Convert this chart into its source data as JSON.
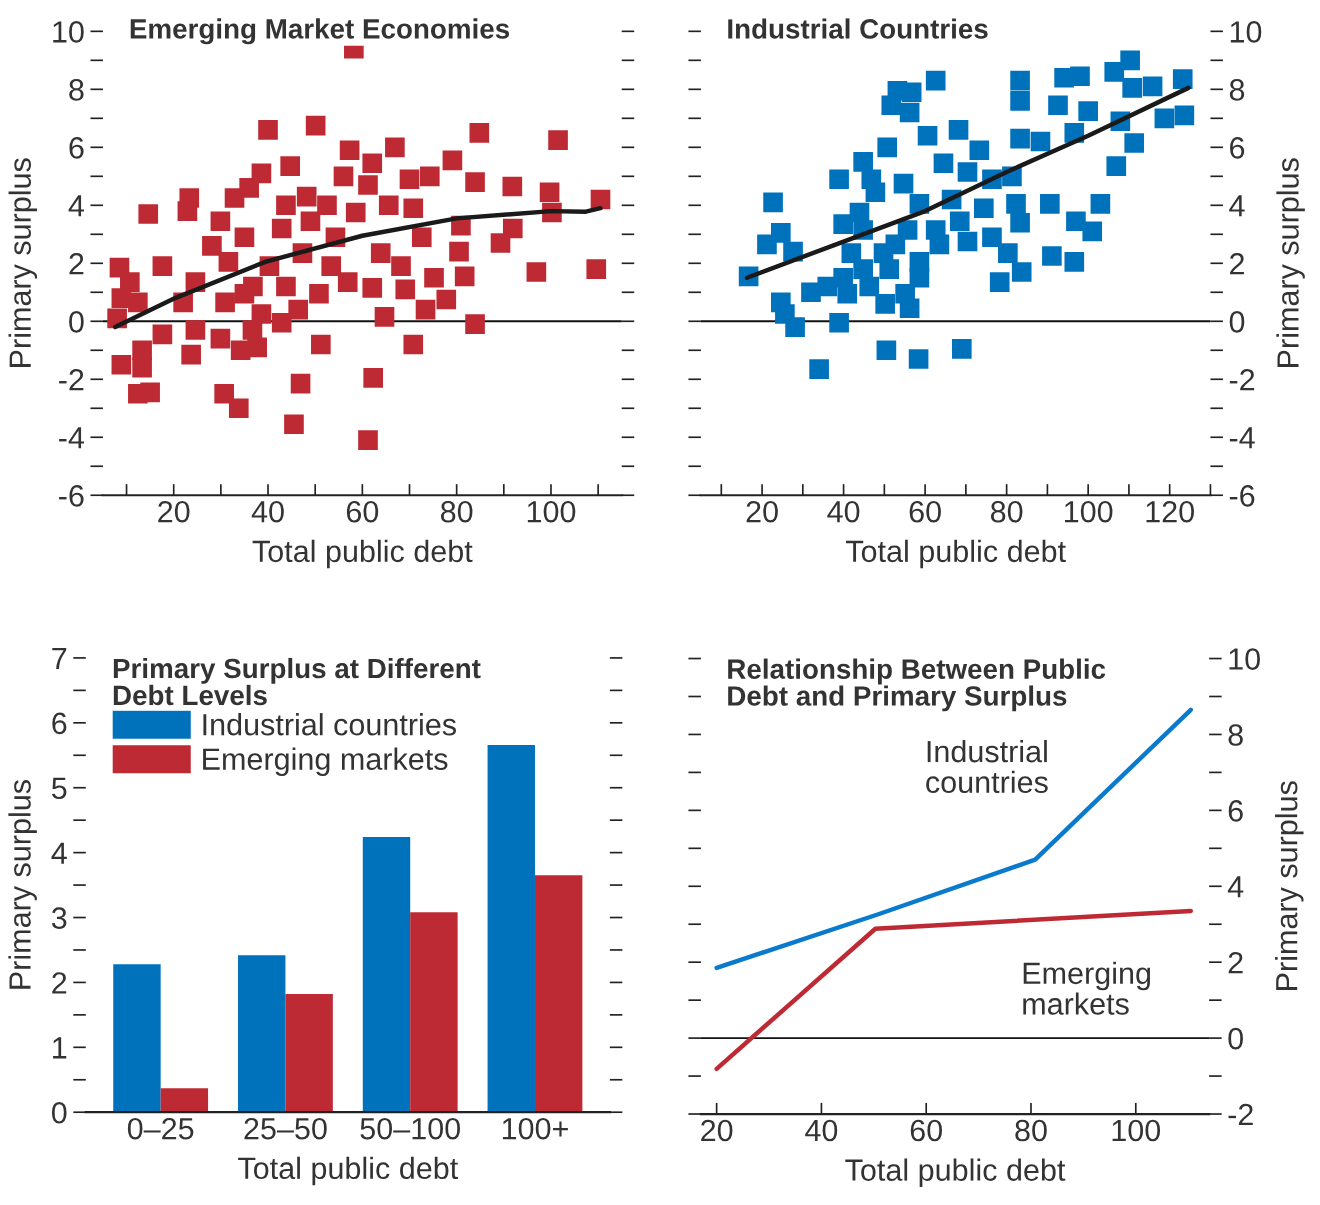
{
  "chart_data": [
    {
      "type": "scatter",
      "title": "Emerging Market Economies",
      "xlabel": "Total public debt",
      "ylabel": "Primary surplus",
      "xlim": [
        5,
        115
      ],
      "xticks": [
        {
          "value": 10,
          "label": null
        },
        20,
        {
          "value": 30,
          "label": null
        },
        40,
        {
          "value": 50,
          "label": null
        },
        60,
        {
          "value": 70,
          "label": null
        },
        80,
        {
          "value": 90,
          "label": null
        },
        100,
        {
          "value": 110,
          "label": null
        }
      ],
      "ylim": [
        -6,
        10
      ],
      "yticks": [
        -6,
        {
          "value": -5,
          "label": null
        },
        -4,
        {
          "value": -3,
          "label": null
        },
        -2,
        {
          "value": -1,
          "label": null
        },
        0,
        {
          "value": 1,
          "label": null
        },
        2,
        {
          "value": 3,
          "label": null
        },
        4,
        {
          "value": 5,
          "label": null
        },
        6,
        {
          "value": 7,
          "label": null
        },
        8,
        {
          "value": 9,
          "label": null
        },
        10
      ],
      "grid": false,
      "ref_lines": [
        {
          "axis": "y",
          "value": 0
        }
      ],
      "series": [
        {
          "type": "scatter",
          "marker": "square",
          "color": "#be2a33",
          "x": [
            58.2,
            40,
            50.1,
            84.8,
            101.5,
            57.3,
            66.9,
            62.1,
            79.1,
            44.7,
            38.6,
            23.3,
            22.9,
            14.6,
            32.9,
            36,
            48.2,
            56,
            61.2,
            70,
            74.3,
            83.9,
            91.8,
            99.7,
            110.5,
            100.2,
            91.9,
            89.3,
            96.9,
            109.6,
            80.9,
            80.5,
            81.7,
            75.2,
            77.8,
            73.4,
            69.1,
            68.2,
            63.9,
            62.1,
            64.7,
            83.9,
            70.8,
            72.6,
            70.8,
            65.6,
            58.6,
            54.3,
            56.9,
            53.4,
            50.8,
            46.4,
            42.9,
            38.6,
            36.7,
            37.7,
            34.2,
            29.9,
            23.7,
            24.6,
            17.6,
            13.3,
            13.3,
            8.9,
            12.4,
            15,
            30.7,
            33.8,
            46.9,
            45.5,
            62.3,
            61.2,
            51.2,
            8.5,
            10.7,
            8.9,
            8,
            12.4,
            17.6,
            24.6,
            22,
            30.9,
            28.1,
            29.9,
            31.6,
            35,
            36.8,
            40.3,
            42.9,
            43.8,
            47.3,
            43.8,
            49,
            52.5,
            35
          ],
          "values": [
            9.4,
            6.6,
            6.75,
            6.5,
            6.25,
            5.9,
            6.0,
            5.45,
            5.55,
            5.35,
            5.1,
            4.25,
            3.8,
            3.7,
            4.25,
            4.6,
            4.3,
            5.0,
            4.7,
            4.9,
            5.0,
            4.8,
            4.65,
            4.45,
            4.2,
            3.75,
            3.2,
            2.7,
            1.7,
            1.8,
            3.3,
            2.4,
            1.55,
            1.5,
            0.75,
            0.4,
            1.1,
            1.9,
            2.35,
            1.15,
            0.15,
            -0.1,
            -0.8,
            2.9,
            3.9,
            4.0,
            3.75,
            2.9,
            1.35,
            1.9,
            0.95,
            0.4,
            -0.05,
            0.25,
            -0.3,
            -0.9,
            -1.0,
            -0.6,
            -1.15,
            -0.3,
            -0.45,
            -1.0,
            -1.6,
            -1.5,
            -2.5,
            -2.45,
            -2.5,
            -3.0,
            -2.15,
            -3.55,
            -1.95,
            -4.1,
            -0.8,
            1.85,
            1.35,
            0.8,
            0.1,
            0.65,
            1.9,
            1.35,
            0.65,
            0.65,
            2.6,
            3.45,
            2.05,
            2.9,
            1.2,
            1.9,
            3.2,
            4.0,
            2.35,
            1.2,
            3.45,
            4.0,
            0.95
          ]
        },
        {
          "type": "line",
          "marker": "none",
          "line_style": "solid",
          "color": "#1a1a1a",
          "x": [
            7.6,
            20.3,
            39.4,
            60,
            80,
            100,
            107.4,
            110.5
          ],
          "values": [
            -0.2,
            0.8,
            2.05,
            2.95,
            3.55,
            3.8,
            3.78,
            3.9
          ]
        }
      ]
    },
    {
      "type": "scatter",
      "title": "Industrial Countries",
      "xlabel": "Total public debt",
      "y2label": "Primary surplus",
      "xlim": [
        5,
        130
      ],
      "xticks": [
        {
          "value": 10,
          "label": null
        },
        20,
        {
          "value": 30,
          "label": null
        },
        40,
        {
          "value": 50,
          "label": null
        },
        60,
        {
          "value": 70,
          "label": null
        },
        80,
        {
          "value": 90,
          "label": null
        },
        100,
        {
          "value": 110,
          "label": null
        },
        120,
        {
          "value": 130,
          "label": null
        }
      ],
      "y2lim": [
        -6,
        10
      ],
      "y2ticks": [
        -6,
        {
          "value": -5,
          "label": null
        },
        -4,
        {
          "value": -3,
          "label": null
        },
        -2,
        {
          "value": -1,
          "label": null
        },
        0,
        {
          "value": 1,
          "label": null
        },
        2,
        {
          "value": 3,
          "label": null
        },
        4,
        {
          "value": 5,
          "label": null
        },
        6,
        {
          "value": 7,
          "label": null
        },
        8,
        {
          "value": 9,
          "label": null
        },
        10
      ],
      "grid": false,
      "ref_lines": [
        {
          "axis": "y2",
          "value": 0
        }
      ],
      "series": [
        {
          "type": "scatter",
          "marker": "square",
          "axis": "y2",
          "color": "#0072bc",
          "x": [
            110.3,
            106.4,
            98,
            94.1,
            123.2,
            115.8,
            110.8,
            83.3,
            83.3,
            92.6,
            100,
            118.7,
            123.6,
            107.9,
            96.6,
            111.3,
            106.9,
            103,
            101,
            97,
            90.6,
            96.6,
            91.1,
            83.7,
            82.3,
            83.3,
            78.3,
            80.3,
            62.6,
            53.2,
            56.7,
            51.7,
            56.2,
            68.2,
            60.6,
            83.3,
            88.3,
            73.3,
            50.7,
            44.8,
            38.9,
            46.8,
            54.7,
            64.5,
            70.4,
            76.4,
            81.3,
            47.8,
            43.9,
            39.9,
            58.6,
            66.5,
            74.4,
            76.4,
            70.4,
            63.5,
            58.6,
            58.6,
            52.7,
            49.8,
            44.8,
            41.9,
            55.7,
            51.2,
            44.8,
            39.9,
            40.9,
            36,
            32,
            46.3,
            50.2,
            55.1,
            56.2,
            22.7,
            24.6,
            21.2,
            27.6,
            16.7,
            24.6,
            25.6,
            28.1,
            38.9,
            50.5,
            58.4,
            69,
            34,
            62.6,
            68.5
          ],
          "values": [
            9.0,
            8.6,
            8.45,
            8.4,
            8.35,
            8.1,
            8.05,
            8.3,
            7.6,
            7.45,
            7.25,
            7.0,
            7.1,
            6.9,
            6.5,
            6.15,
            5.35,
            4.05,
            3.1,
            3.45,
            4.05,
            2.05,
            2.25,
            1.7,
            4.05,
            3.4,
            1.35,
            2.35,
            8.3,
            7.95,
            7.9,
            7.45,
            7.2,
            6.6,
            6.4,
            6.3,
            6.2,
            5.9,
            6.0,
            5.5,
            4.9,
            4.9,
            4.75,
            5.45,
            5.15,
            4.9,
            5.0,
            4.45,
            3.75,
            3.35,
            4.05,
            4.2,
            3.9,
            2.9,
            2.75,
            2.65,
            2.05,
            1.5,
            2.65,
            2.35,
            3.15,
            2.35,
            3.15,
            1.8,
            1.8,
            1.5,
            0.95,
            1.2,
            1.0,
            1.2,
            0.6,
            0.95,
            0.45,
            4.1,
            3.05,
            2.65,
            2.4,
            1.55,
            0.65,
            0.25,
            -0.2,
            -0.05,
            -1.0,
            -1.3,
            -0.95,
            -1.65,
            3.15,
            3.45
          ]
        },
        {
          "type": "line",
          "marker": "none",
          "line_style": "solid",
          "axis": "y2",
          "color": "#1a1a1a",
          "x": [
            16.3,
            40,
            60,
            80,
            100,
            124.6
          ],
          "values": [
            1.5,
            2.75,
            3.8,
            5.15,
            6.4,
            8.05
          ]
        }
      ]
    },
    {
      "type": "bar",
      "title": "Primary Surplus at Different\nDebt Levels",
      "xlabel": "Total public debt",
      "ylabel": "Primary surplus",
      "categories": [
        "0–25",
        "25–50",
        "50–100",
        "100+"
      ],
      "ylim": [
        0,
        7
      ],
      "yticks": [
        0,
        {
          "value": 0.5,
          "label": null
        },
        1,
        {
          "value": 1.5,
          "label": null
        },
        2,
        {
          "value": 2.5,
          "label": null
        },
        3,
        {
          "value": 3.5,
          "label": null
        },
        4,
        {
          "value": 4.5,
          "label": null
        },
        5,
        {
          "value": 5.5,
          "label": null
        },
        6,
        {
          "value": 6.5,
          "label": null
        },
        7
      ],
      "grid": false,
      "legend": "top left",
      "series": [
        {
          "name": "Industrial countries",
          "color": "#0072bc",
          "values": [
            2.28,
            2.42,
            4.24,
            5.66
          ]
        },
        {
          "name": "Emerging markets",
          "color": "#be2a33",
          "values": [
            0.37,
            1.82,
            3.08,
            3.65
          ]
        }
      ]
    },
    {
      "type": "line",
      "title": "Relationship Between Public\nDebt and Primary Surplus",
      "xlabel": "Total public debt",
      "y2label": "Primary surplus",
      "xlim": [
        17,
        114
      ],
      "xticks": [
        20,
        40,
        60,
        80,
        100
      ],
      "y2lim": [
        -2,
        10
      ],
      "y2ticks": [
        -2,
        {
          "value": -1,
          "label": null
        },
        0,
        {
          "value": 1,
          "label": null
        },
        2,
        {
          "value": 3,
          "label": null
        },
        4,
        {
          "value": 5,
          "label": null
        },
        6,
        {
          "value": 7,
          "label": null
        },
        8,
        {
          "value": 9,
          "label": null
        },
        10
      ],
      "grid": false,
      "ref_lines": [
        {
          "axis": "y2",
          "value": 0
        }
      ],
      "series": [
        {
          "name": "Industrial countries",
          "axis": "y2",
          "marker": "none",
          "line_style": "solid",
          "color": "#0a7bcc",
          "x": [
            20,
            51,
            80.8,
            110.5
          ],
          "values": [
            1.85,
            3.27,
            4.7,
            8.65
          ]
        },
        {
          "name": "Emerging markets",
          "axis": "y2",
          "marker": "none",
          "line_style": "solid",
          "color": "#be2a33",
          "x": [
            20,
            50.3,
            110.5
          ],
          "values": [
            -0.81,
            2.88,
            3.35
          ]
        }
      ]
    }
  ]
}
